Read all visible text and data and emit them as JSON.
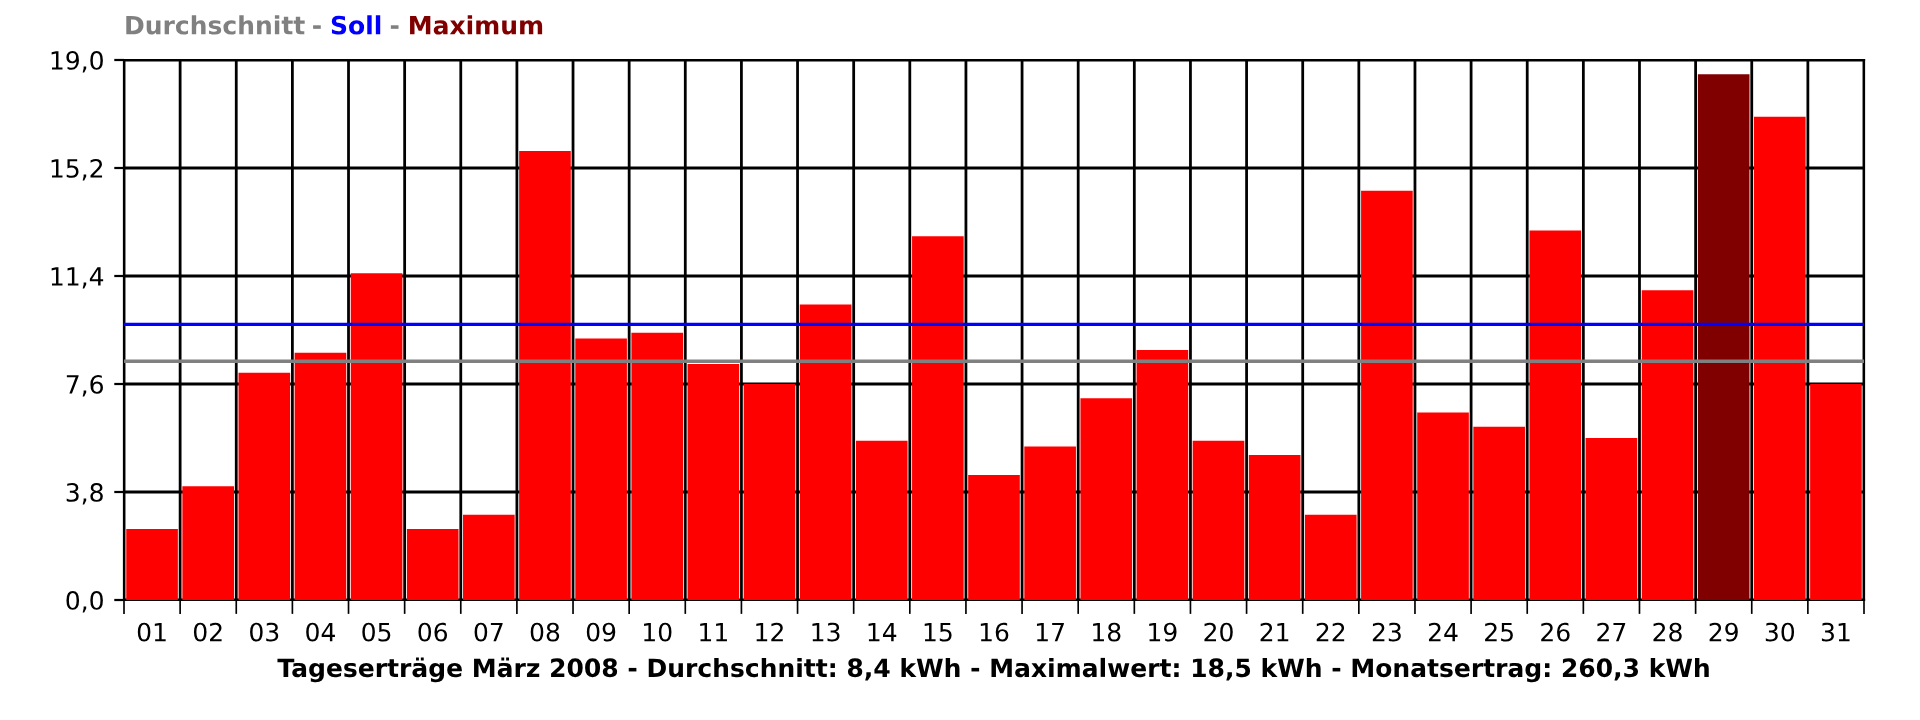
{
  "chart_data": {
    "type": "bar",
    "xlabel": "Tageserträge März 2008 - Durchschnitt: 8,4 kWh - Maximalwert: 18,5 kWh - Monatsertrag: 260,3 kWh",
    "categories": [
      "01",
      "02",
      "03",
      "04",
      "05",
      "06",
      "07",
      "08",
      "09",
      "10",
      "11",
      "12",
      "13",
      "14",
      "15",
      "16",
      "17",
      "18",
      "19",
      "20",
      "21",
      "22",
      "23",
      "24",
      "25",
      "26",
      "27",
      "28",
      "29",
      "30",
      "31"
    ],
    "series": [
      {
        "color": "#ff0000",
        "values": [
          2.5,
          4.0,
          8.0,
          8.7,
          11.5,
          2.5,
          3.0,
          15.8,
          9.2,
          9.4,
          8.3,
          7.6,
          10.4,
          5.6,
          12.8,
          4.4,
          5.4,
          7.1,
          8.8,
          5.6,
          5.1,
          3.0,
          14.4,
          6.6,
          6.1,
          13.0,
          5.7,
          10.9,
          null,
          17.0,
          7.6
        ]
      },
      {
        "name": "Maximum",
        "color": "#800000",
        "values": [
          null,
          null,
          null,
          null,
          null,
          null,
          null,
          null,
          null,
          null,
          null,
          null,
          null,
          null,
          null,
          null,
          null,
          null,
          null,
          null,
          null,
          null,
          null,
          null,
          null,
          null,
          null,
          null,
          18.5,
          null,
          null
        ]
      }
    ],
    "ylim": [
      0,
      19
    ],
    "yticks": [
      {
        "value": 0,
        "label": "0,0"
      },
      {
        "value": 3.8,
        "label": "3,8"
      },
      {
        "value": 7.6,
        "label": "7,6"
      },
      {
        "value": 11.4,
        "label": "11,4"
      },
      {
        "value": 15.2,
        "label": "15,2"
      },
      {
        "value": 19,
        "label": "19,0"
      }
    ],
    "ref_lines": [
      {
        "axis": "y",
        "value": 8.4,
        "label": "Durchschnitt",
        "color": "#808080"
      },
      {
        "axis": "y",
        "value": 9.7,
        "label": "Soll",
        "color": "#0000ff"
      }
    ],
    "annotations": [
      "-",
      "-"
    ],
    "grid": true,
    "legend": "top left"
  }
}
